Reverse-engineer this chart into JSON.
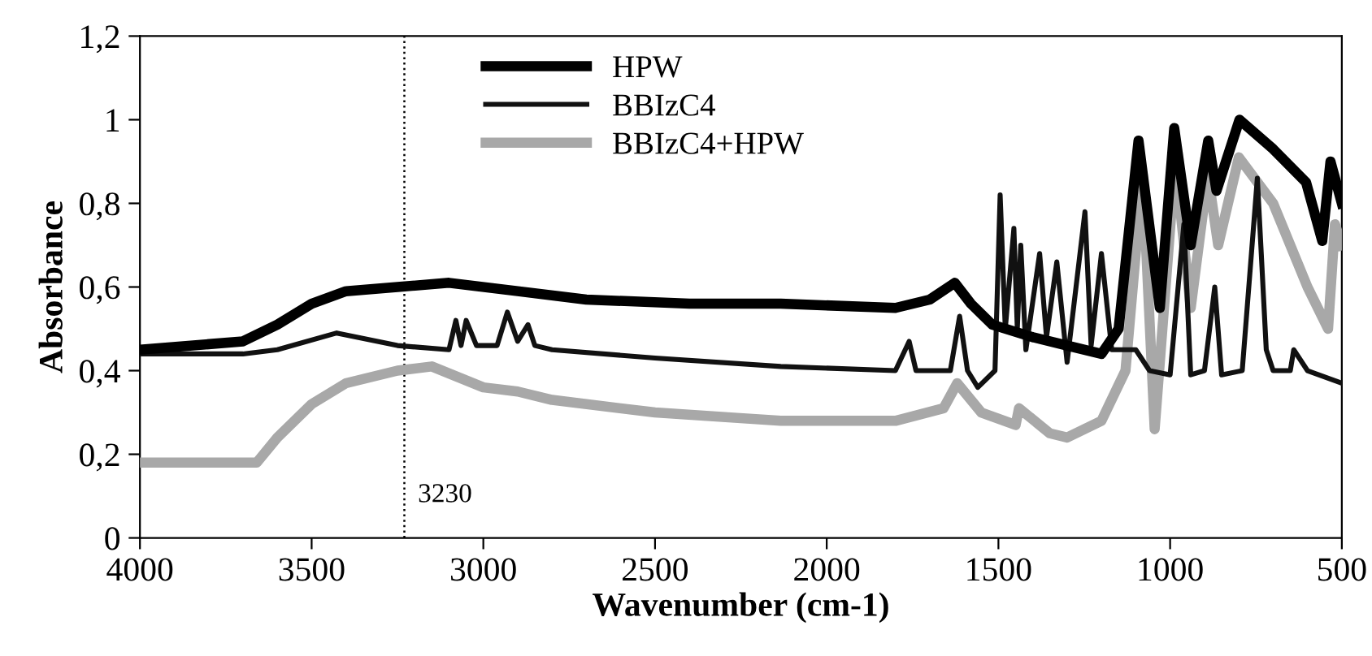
{
  "chart_data": {
    "type": "line",
    "xlabel": "Wavenumber (cm-1)",
    "ylabel": "Absorbance",
    "xlim": [
      4000,
      500
    ],
    "xticks": [
      4000,
      3500,
      3000,
      2500,
      2000,
      1500,
      1000,
      500
    ],
    "ylim": [
      0,
      1.2
    ],
    "yticks": [
      0,
      {
        "value": 0.2,
        "label": "0,2"
      },
      {
        "value": 0.4,
        "label": "0,4"
      },
      {
        "value": 0.6,
        "label": "0,6"
      },
      {
        "value": 0.8,
        "label": "0,8"
      },
      1,
      {
        "value": 1.2,
        "label": "1,2"
      }
    ],
    "grid": false,
    "legend": "top",
    "marker": "none",
    "line_style": "solid",
    "ref_lines": [
      {
        "axis": "x",
        "value": 3230,
        "label": "3230",
        "line_style": "dotted",
        "color": "#000000"
      }
    ],
    "series": [
      {
        "name": "HPW",
        "color": "#000000",
        "x": [
          4000,
          3700,
          3600,
          3500,
          3400,
          3250,
          3100,
          2900,
          2700,
          2400,
          2134,
          1800,
          1700,
          1627,
          1580,
          1518,
          1400,
          1300,
          1200,
          1150,
          1092,
          1030,
          988,
          940,
          889,
          865,
          798,
          700,
          604,
          557,
          533,
          500
        ],
        "values": [
          0.45,
          0.47,
          0.51,
          0.56,
          0.59,
          0.6,
          0.61,
          0.59,
          0.57,
          0.56,
          0.56,
          0.55,
          0.57,
          0.61,
          0.56,
          0.51,
          0.48,
          0.46,
          0.44,
          0.5,
          0.95,
          0.55,
          0.98,
          0.7,
          0.95,
          0.83,
          1.0,
          0.93,
          0.85,
          0.71,
          0.9,
          0.8
        ]
      },
      {
        "name": "BBIzC4",
        "color": "#111111",
        "x": [
          4000,
          3700,
          3600,
          3427,
          3250,
          3100,
          3080,
          3065,
          3050,
          3020,
          2960,
          2930,
          2900,
          2870,
          2850,
          2800,
          2500,
          2134,
          1800,
          1760,
          1740,
          1700,
          1640,
          1613,
          1590,
          1560,
          1510,
          1495,
          1480,
          1455,
          1445,
          1435,
          1420,
          1380,
          1360,
          1330,
          1300,
          1248,
          1230,
          1200,
          1170,
          1100,
          1060,
          1000,
          960,
          940,
          900,
          870,
          850,
          790,
          746,
          720,
          700,
          650,
          640,
          600,
          500
        ],
        "values": [
          0.44,
          0.44,
          0.45,
          0.49,
          0.46,
          0.45,
          0.52,
          0.46,
          0.52,
          0.46,
          0.46,
          0.54,
          0.47,
          0.51,
          0.46,
          0.45,
          0.43,
          0.41,
          0.4,
          0.47,
          0.4,
          0.4,
          0.4,
          0.53,
          0.4,
          0.36,
          0.4,
          0.82,
          0.5,
          0.74,
          0.5,
          0.7,
          0.45,
          0.68,
          0.48,
          0.66,
          0.42,
          0.78,
          0.46,
          0.68,
          0.45,
          0.45,
          0.4,
          0.39,
          0.75,
          0.39,
          0.4,
          0.6,
          0.39,
          0.4,
          0.86,
          0.45,
          0.4,
          0.4,
          0.45,
          0.4,
          0.37
        ]
      },
      {
        "name": "BBIzC4+HPW",
        "color": "#a8a8a8",
        "x": [
          4000,
          3660,
          3600,
          3500,
          3400,
          3250,
          3150,
          3000,
          2900,
          2800,
          2500,
          2134,
          1800,
          1660,
          1620,
          1550,
          1450,
          1440,
          1350,
          1300,
          1200,
          1130,
          1080,
          1045,
          985,
          940,
          890,
          860,
          800,
          700,
          600,
          540,
          520,
          500
        ],
        "values": [
          0.18,
          0.18,
          0.24,
          0.32,
          0.37,
          0.4,
          0.41,
          0.36,
          0.35,
          0.33,
          0.3,
          0.28,
          0.28,
          0.31,
          0.37,
          0.3,
          0.27,
          0.31,
          0.25,
          0.24,
          0.28,
          0.4,
          0.87,
          0.26,
          0.9,
          0.55,
          0.87,
          0.7,
          0.91,
          0.8,
          0.6,
          0.5,
          0.75,
          0.7
        ]
      }
    ]
  }
}
